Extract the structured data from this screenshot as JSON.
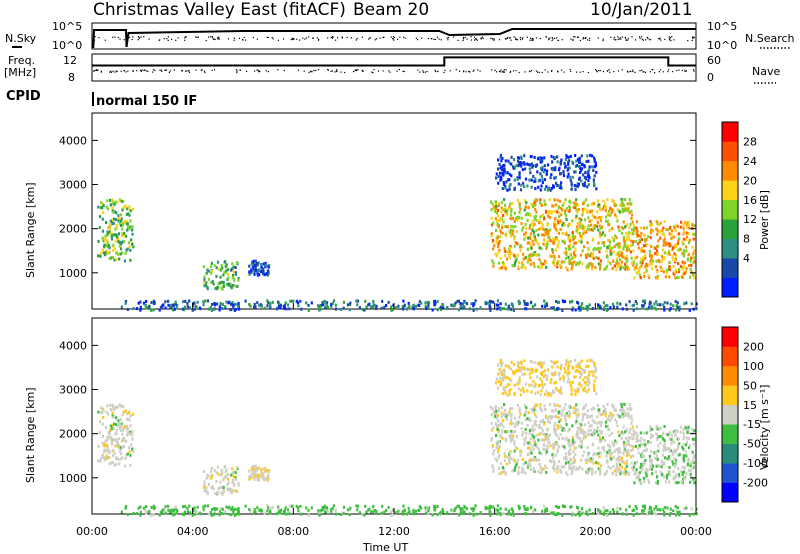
{
  "header": {
    "title": "Christmas Valley East (fitACF)",
    "beam": "Beam 20",
    "date": "10/Jan/2011"
  },
  "strip_panels": {
    "nsky": {
      "left_label": "N.Sky",
      "right_label": "N.Search",
      "left_ticks": [
        "10^5",
        "10^0"
      ],
      "right_ticks": [
        "10^5",
        "10^0"
      ]
    },
    "freq": {
      "left_label_line1": "Freq.",
      "left_label_line2": "[MHz]",
      "right_label": "Nave",
      "left_ticks": [
        "12",
        "8"
      ],
      "right_ticks": [
        "60",
        "0"
      ],
      "freq_steps": [
        {
          "from_hour": 0,
          "to_hour": 14.0,
          "mhz": 10.3
        },
        {
          "from_hour": 14.0,
          "to_hour": 22.9,
          "mhz": 11.5
        },
        {
          "from_hour": 22.9,
          "to_hour": 24,
          "mhz": 10.3
        }
      ]
    },
    "cpid": {
      "label": "CPID",
      "value": "normal 150 IF"
    }
  },
  "panels": {
    "power": {
      "ylabel": "Slant Range [km]",
      "colorbar_label": "Power [dB]",
      "colorbar_ticks": [
        "28",
        "24",
        "20",
        "16",
        "12",
        "8",
        "4"
      ],
      "colorbar_colors": [
        "#0020ff",
        "#1848a8",
        "#2f8f82",
        "#2aa33a",
        "#7fd42a",
        "#ffd21a",
        "#ff8c00",
        "#ff5000",
        "#ff0000"
      ]
    },
    "velocity": {
      "ylabel": "Slant Range [km]",
      "colorbar_label": "Velocity [m s⁻¹]",
      "colorbar_ticks": [
        "200",
        "100",
        "50",
        "15",
        "-15",
        "-50",
        "-100",
        "-200"
      ],
      "colorbar_colors": [
        "#0000ff",
        "#1f56d0",
        "#2a8c7a",
        "#3fbf40",
        "#cfcfc6",
        "#ffc81a",
        "#ff8c00",
        "#ff4a00",
        "#ff0000"
      ]
    }
  },
  "xaxis": {
    "label": "Time UT",
    "ticks": [
      "00:00",
      "04:00",
      "08:00",
      "12:00",
      "16:00",
      "20:00",
      "00:00"
    ]
  },
  "chart_data": {
    "type": "heatmap",
    "title": "Christmas Valley East (fitACF)",
    "x_label": "Time UT",
    "x_range_hours": [
      0,
      24
    ],
    "y_label": "Slant Range [km]",
    "y_range_km": [
      180,
      4620
    ],
    "y_ticks": [
      1000,
      2000,
      3000,
      4000
    ],
    "power_colorbar_db": [
      4,
      8,
      12,
      16,
      20,
      24,
      28
    ],
    "velocity_colorbar_ms": [
      -200,
      -100,
      -50,
      -15,
      15,
      50,
      100,
      200
    ],
    "echo_regions": [
      {
        "hours": [
          0.2,
          1.6
        ],
        "range_km": [
          1300,
          2700
        ],
        "power_db": 16,
        "velocity_ms": 0
      },
      {
        "hours": [
          4.4,
          5.8
        ],
        "range_km": [
          650,
          1300
        ],
        "power_db": 14,
        "velocity_ms": 0
      },
      {
        "hours": [
          6.2,
          7.0
        ],
        "range_km": [
          950,
          1300
        ],
        "power_db": 6,
        "velocity_ms": 10
      },
      {
        "hours": [
          15.8,
          21.5
        ],
        "range_km": [
          1100,
          2700
        ],
        "power_db": 22,
        "velocity_ms": 0
      },
      {
        "hours": [
          21.5,
          23.9
        ],
        "range_km": [
          900,
          2200
        ],
        "power_db": 24,
        "velocity_ms": -10
      },
      {
        "hours": [
          16.0,
          20.0
        ],
        "range_km": [
          2900,
          3700
        ],
        "power_db": 4,
        "velocity_ms": 20
      },
      {
        "hours": [
          1.0,
          24.0
        ],
        "range_km": [
          180,
          400
        ],
        "power_db": 8,
        "velocity_ms": -30
      }
    ]
  }
}
